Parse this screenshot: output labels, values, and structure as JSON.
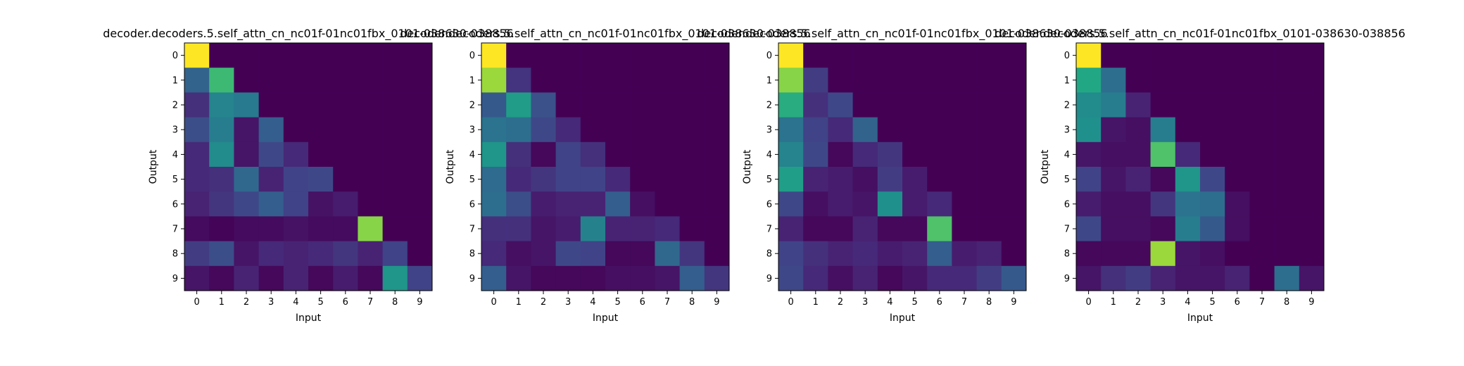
{
  "colormap": "viridis",
  "colors": {
    "background": "#ffffff",
    "frame": "#000000"
  },
  "chart_data": [
    {
      "type": "heatmap",
      "title": "decoder.decoders.5.self_attn_cn_nc01f-01nc01fbx_0101-038630-038856",
      "xlabel": "Input",
      "ylabel": "Output",
      "x": [
        "0",
        "1",
        "2",
        "3",
        "4",
        "5",
        "6",
        "7",
        "8",
        "9"
      ],
      "y": [
        "0",
        "1",
        "2",
        "3",
        "4",
        "5",
        "6",
        "7",
        "8",
        "9"
      ],
      "vlim": [
        0,
        1
      ],
      "values": [
        [
          1.0,
          0,
          0,
          0,
          0,
          0,
          0,
          0,
          0,
          0
        ],
        [
          0.32,
          0.68,
          0,
          0,
          0,
          0,
          0,
          0,
          0,
          0
        ],
        [
          0.14,
          0.45,
          0.41,
          0,
          0,
          0,
          0,
          0,
          0,
          0
        ],
        [
          0.24,
          0.42,
          0.06,
          0.3,
          0,
          0,
          0,
          0,
          0,
          0
        ],
        [
          0.12,
          0.48,
          0.06,
          0.22,
          0.12,
          0,
          0,
          0,
          0,
          0
        ],
        [
          0.12,
          0.14,
          0.34,
          0.1,
          0.2,
          0.22,
          0,
          0,
          0,
          0
        ],
        [
          0.1,
          0.16,
          0.22,
          0.3,
          0.2,
          0.05,
          0.08,
          0,
          0,
          0
        ],
        [
          0.03,
          0.01,
          0.03,
          0.03,
          0.05,
          0.03,
          0.03,
          0.82,
          0,
          0
        ],
        [
          0.18,
          0.24,
          0.06,
          0.12,
          0.1,
          0.12,
          0.16,
          0.1,
          0.2,
          0
        ],
        [
          0.06,
          0.02,
          0.1,
          0.02,
          0.1,
          0.02,
          0.08,
          0.02,
          0.52,
          0.2
        ]
      ]
    },
    {
      "type": "heatmap",
      "title": "decoder.decoders.5.self_attn_cn_nc01f-01nc01fbx_0101-038630-038856",
      "xlabel": "Input",
      "ylabel": "Output",
      "x": [
        "0",
        "1",
        "2",
        "3",
        "4",
        "5",
        "6",
        "7",
        "8",
        "9"
      ],
      "y": [
        "0",
        "1",
        "2",
        "3",
        "4",
        "5",
        "6",
        "7",
        "8",
        "9"
      ],
      "vlim": [
        0,
        1
      ],
      "values": [
        [
          1.0,
          0,
          0,
          0,
          0,
          0,
          0,
          0,
          0,
          0
        ],
        [
          0.85,
          0.15,
          0,
          0,
          0,
          0,
          0,
          0,
          0,
          0
        ],
        [
          0.28,
          0.55,
          0.25,
          0,
          0,
          0,
          0,
          0,
          0,
          0
        ],
        [
          0.38,
          0.36,
          0.22,
          0.12,
          0,
          0,
          0,
          0,
          0,
          0
        ],
        [
          0.52,
          0.14,
          0.02,
          0.2,
          0.14,
          0,
          0,
          0,
          0,
          0
        ],
        [
          0.35,
          0.12,
          0.16,
          0.2,
          0.2,
          0.12,
          0,
          0,
          0,
          0
        ],
        [
          0.36,
          0.24,
          0.08,
          0.1,
          0.1,
          0.3,
          0.04,
          0,
          0,
          0
        ],
        [
          0.14,
          0.14,
          0.06,
          0.08,
          0.44,
          0.1,
          0.1,
          0.12,
          0,
          0
        ],
        [
          0.12,
          0.04,
          0.06,
          0.22,
          0.2,
          0.02,
          0.02,
          0.34,
          0.16,
          0
        ],
        [
          0.3,
          0.06,
          0.02,
          0.02,
          0.02,
          0.04,
          0.04,
          0.06,
          0.3,
          0.16
        ]
      ]
    },
    {
      "type": "heatmap",
      "title": "decoder.decoders.5.self_attn_cn_nc01f-01nc01fbx_0101-038630-038856",
      "xlabel": "Input",
      "ylabel": "Output",
      "x": [
        "0",
        "1",
        "2",
        "3",
        "4",
        "5",
        "6",
        "7",
        "8",
        "9"
      ],
      "y": [
        "0",
        "1",
        "2",
        "3",
        "4",
        "5",
        "6",
        "7",
        "8",
        "9"
      ],
      "vlim": [
        0,
        1
      ],
      "values": [
        [
          1.0,
          0,
          0,
          0,
          0,
          0,
          0,
          0,
          0,
          0
        ],
        [
          0.82,
          0.18,
          0,
          0,
          0,
          0,
          0,
          0,
          0,
          0
        ],
        [
          0.62,
          0.14,
          0.22,
          0,
          0,
          0,
          0,
          0,
          0,
          0
        ],
        [
          0.38,
          0.2,
          0.12,
          0.32,
          0,
          0,
          0,
          0,
          0,
          0
        ],
        [
          0.45,
          0.22,
          0.02,
          0.12,
          0.16,
          0,
          0,
          0,
          0,
          0
        ],
        [
          0.56,
          0.1,
          0.08,
          0.04,
          0.18,
          0.08,
          0,
          0,
          0,
          0
        ],
        [
          0.22,
          0.04,
          0.08,
          0.06,
          0.5,
          0.08,
          0.12,
          0,
          0,
          0
        ],
        [
          0.1,
          0.02,
          0.02,
          0.1,
          0.02,
          0.02,
          0.72,
          0,
          0,
          0
        ],
        [
          0.2,
          0.14,
          0.1,
          0.12,
          0.08,
          0.1,
          0.3,
          0.08,
          0.1,
          0
        ],
        [
          0.22,
          0.12,
          0.04,
          0.1,
          0.02,
          0.06,
          0.12,
          0.12,
          0.18,
          0.28
        ]
      ]
    },
    {
      "type": "heatmap",
      "title": "decoder.decoders.5.self_attn_cn_nc01f-01nc01fbx_0101-038630-038856",
      "xlabel": "Input",
      "ylabel": "Output",
      "x": [
        "0",
        "1",
        "2",
        "3",
        "4",
        "5",
        "6",
        "7",
        "8",
        "9"
      ],
      "y": [
        "0",
        "1",
        "2",
        "3",
        "4",
        "5",
        "6",
        "7",
        "8",
        "9"
      ],
      "vlim": [
        0,
        1
      ],
      "values": [
        [
          1.0,
          0,
          0,
          0,
          0,
          0,
          0,
          0,
          0,
          0
        ],
        [
          0.6,
          0.36,
          0,
          0,
          0,
          0,
          0,
          0,
          0,
          0
        ],
        [
          0.48,
          0.42,
          0.1,
          0,
          0,
          0,
          0,
          0,
          0,
          0
        ],
        [
          0.5,
          0.06,
          0.04,
          0.42,
          0,
          0,
          0,
          0,
          0,
          0
        ],
        [
          0.06,
          0.04,
          0.04,
          0.72,
          0.12,
          0,
          0,
          0,
          0,
          0
        ],
        [
          0.2,
          0.06,
          0.1,
          0.02,
          0.52,
          0.22,
          0,
          0,
          0,
          0
        ],
        [
          0.08,
          0.04,
          0.04,
          0.16,
          0.38,
          0.36,
          0.04,
          0,
          0,
          0
        ],
        [
          0.22,
          0.04,
          0.04,
          0.02,
          0.42,
          0.28,
          0.04,
          0,
          0,
          0
        ],
        [
          0.02,
          0.02,
          0.02,
          0.85,
          0.06,
          0.04,
          0,
          0,
          0,
          0
        ],
        [
          0.06,
          0.14,
          0.18,
          0.1,
          0.06,
          0.06,
          0.1,
          0,
          0.36,
          0.06
        ]
      ]
    }
  ]
}
